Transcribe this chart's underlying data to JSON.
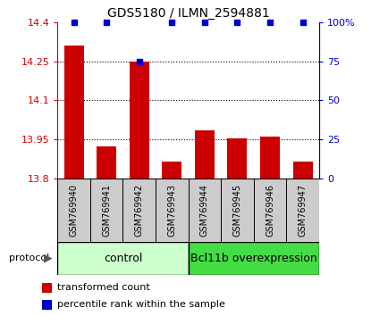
{
  "title": "GDS5180 / ILMN_2594881",
  "samples": [
    "GSM769940",
    "GSM769941",
    "GSM769942",
    "GSM769943",
    "GSM769944",
    "GSM769945",
    "GSM769946",
    "GSM769947"
  ],
  "red_values": [
    14.31,
    13.925,
    14.25,
    13.865,
    13.985,
    13.955,
    13.96,
    13.865
  ],
  "blue_values": [
    100,
    100,
    75,
    100,
    100,
    100,
    100,
    100
  ],
  "ylim_left": [
    13.8,
    14.4
  ],
  "ylim_right": [
    0,
    100
  ],
  "yticks_left": [
    13.8,
    13.95,
    14.1,
    14.25,
    14.4
  ],
  "yticks_right": [
    0,
    25,
    50,
    75,
    100
  ],
  "ytick_labels_left": [
    "13.8",
    "13.95",
    "14.1",
    "14.25",
    "14.4"
  ],
  "ytick_labels_right": [
    "0",
    "25",
    "50",
    "75",
    "100%"
  ],
  "bar_color": "#cc0000",
  "dot_color": "#0000cc",
  "control_label": "control",
  "overexpression_label": "Bcl11b overexpression",
  "control_color": "#ccffcc",
  "overexpression_color": "#44dd44",
  "protocol_label": "protocol",
  "legend_red": "transformed count",
  "legend_blue": "percentile rank within the sample",
  "col_bg_color": "#cccccc",
  "n_control": 4,
  "n_over": 4
}
